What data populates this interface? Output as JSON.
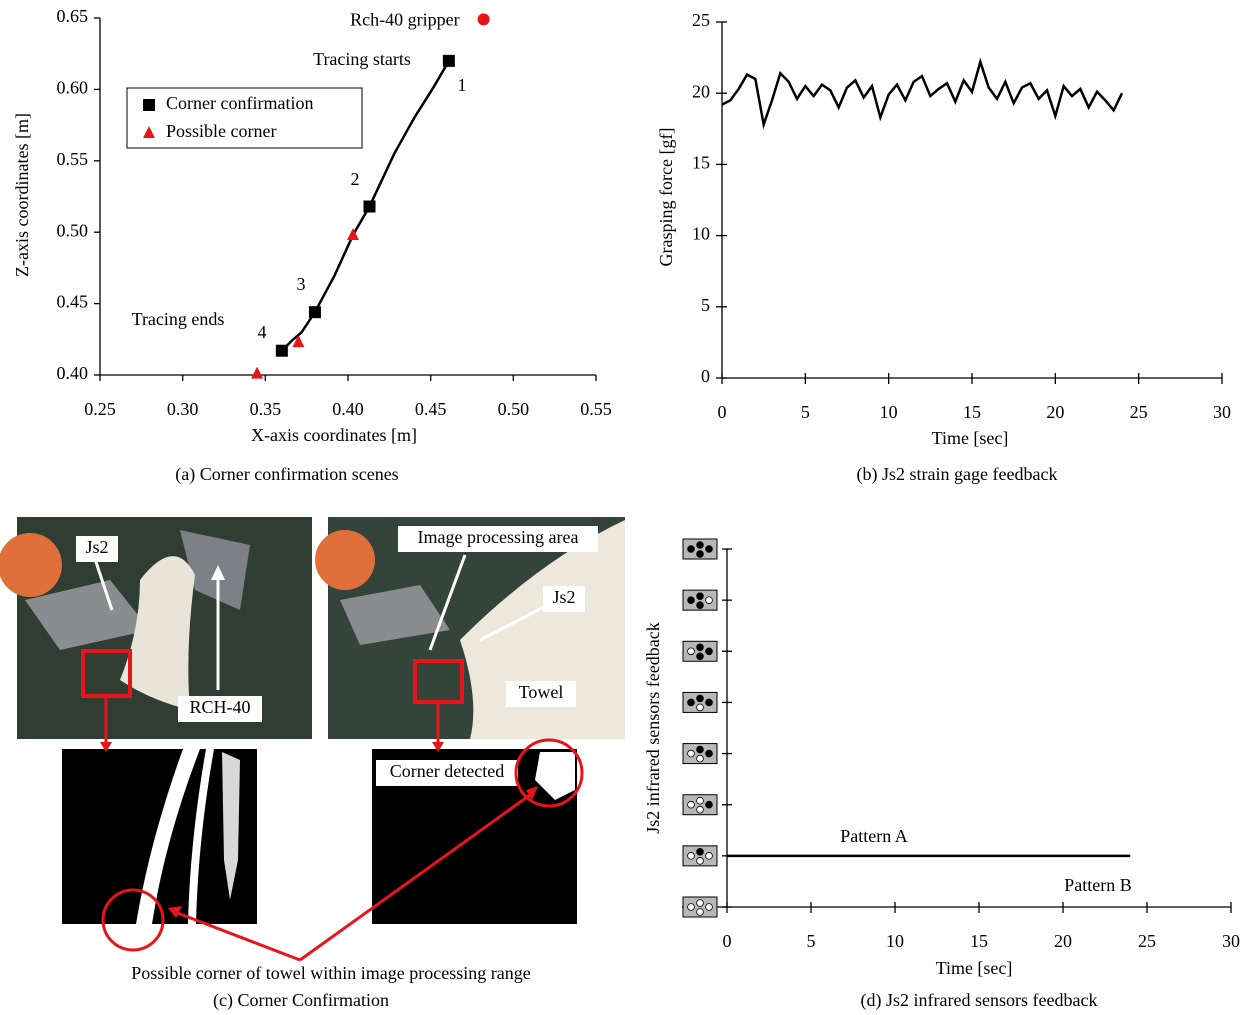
{
  "chart_data": [
    {
      "type": "scatter",
      "caption": "(a)  Corner confirmation scenes",
      "xlabel": "X-axis coordinates [m]",
      "ylabel": "Z-axis coordinates [m]",
      "xlim": [
        0.25,
        0.55
      ],
      "ylim": [
        0.4,
        0.65
      ],
      "xticks": [
        0.25,
        {
          "value": 0.3,
          "label": "0.30"
        },
        0.35,
        {
          "value": 0.4,
          "label": "0.40"
        },
        0.45,
        {
          "value": 0.5,
          "label": "0.50"
        },
        0.55
      ],
      "yticks": [
        {
          "value": 0.4,
          "label": "0.40"
        },
        0.45,
        {
          "value": 0.5,
          "label": "0.50"
        },
        0.55,
        {
          "value": 0.6,
          "label": "0.60"
        },
        0.65
      ],
      "series": [
        {
          "marker": "line",
          "color": "#000000",
          "x": [
            0.461,
            0.452,
            0.44,
            0.428,
            0.413,
            0.403,
            0.392,
            0.38,
            0.372,
            0.366,
            0.36
          ],
          "values": [
            0.62,
            0.602,
            0.58,
            0.555,
            0.518,
            0.498,
            0.47,
            0.444,
            0.43,
            0.424,
            0.417
          ]
        },
        {
          "name": "Corner confirmation",
          "marker": "square",
          "color": "#000000",
          "legend_in_box": true,
          "x": [
            0.461,
            0.413,
            0.38,
            0.36
          ],
          "values": [
            0.62,
            0.518,
            0.444,
            0.417
          ]
        },
        {
          "name": "Possible corner",
          "marker": "triangle",
          "color": "#e8141a",
          "legend_in_box": true,
          "x": [
            0.403,
            0.37,
            0.345
          ],
          "values": [
            0.498,
            0.423,
            0.401
          ]
        },
        {
          "name": "Rch-40 gripper",
          "marker": "circle",
          "color": "#e8141a",
          "legend_in_box": false,
          "x": [
            0.482
          ],
          "values": [
            0.649
          ]
        }
      ],
      "annotations": [
        "Tracing starts",
        "Tracing ends",
        "1",
        "2",
        "3",
        "4"
      ]
    },
    {
      "type": "line",
      "caption": "(b)  Js2 strain gage feedback",
      "xlabel": "Time [sec]",
      "ylabel": "Grasping force [gf]",
      "xlim": [
        0,
        30
      ],
      "ylim": [
        0,
        25
      ],
      "xticks": [
        0,
        5,
        10,
        15,
        20,
        25,
        30
      ],
      "yticks": [
        0,
        5,
        10,
        15,
        20,
        25
      ],
      "series": [
        {
          "color": "#000000",
          "x": [
            0,
            0.5,
            1,
            1.5,
            2,
            2.5,
            3,
            3.5,
            4,
            4.5,
            5,
            5.5,
            6,
            6.5,
            7,
            7.5,
            8,
            8.5,
            9,
            9.5,
            10,
            10.5,
            11,
            11.5,
            12,
            12.5,
            13,
            13.5,
            14,
            14.5,
            15,
            15.5,
            16,
            16.5,
            17,
            17.5,
            18,
            18.5,
            19,
            19.5,
            20,
            20.5,
            21,
            21.5,
            22,
            22.5,
            23,
            23.5,
            24
          ],
          "values": [
            19.2,
            19.5,
            20.3,
            21.3,
            21.0,
            17.8,
            19.5,
            21.4,
            20.8,
            19.6,
            20.5,
            19.8,
            20.6,
            20.2,
            19.0,
            20.4,
            20.9,
            19.7,
            20.5,
            18.3,
            19.9,
            20.6,
            19.5,
            20.8,
            21.2,
            19.8,
            20.3,
            20.7,
            19.4,
            20.9,
            20.1,
            22.2,
            20.4,
            19.6,
            20.8,
            19.3,
            20.4,
            20.7,
            19.6,
            20.2,
            18.4,
            20.5,
            19.8,
            20.3,
            19.0,
            20.1,
            19.5,
            18.8,
            20.0
          ]
        }
      ]
    },
    {
      "type": "step",
      "caption": "(d)  Js2 infrared sensors feedback",
      "xlabel": "Time [sec]",
      "ylabel": "Js2 infrared sensors feedback",
      "xlim": [
        0,
        30
      ],
      "xticks": [
        0,
        5,
        10,
        15,
        20,
        25,
        30
      ],
      "ycategories": [
        null,
        null,
        null,
        null,
        null,
        null,
        null,
        null
      ],
      "series": [
        {
          "color": "#000000",
          "x": [
            0,
            24
          ],
          "values": [
            1,
            1
          ]
        }
      ],
      "annotations": [
        "Pattern A",
        "Pattern B"
      ]
    }
  ],
  "photo_panel": {
    "caption": "(c)  Corner Confirmation",
    "left_photo": {
      "labels": [
        "Js2",
        "RCH-40"
      ]
    },
    "right_photo": {
      "labels": [
        "Image processing area",
        "Js2",
        "Towel"
      ]
    },
    "result_label": "Corner detected",
    "note": "Possible corner of towel within image processing range"
  }
}
